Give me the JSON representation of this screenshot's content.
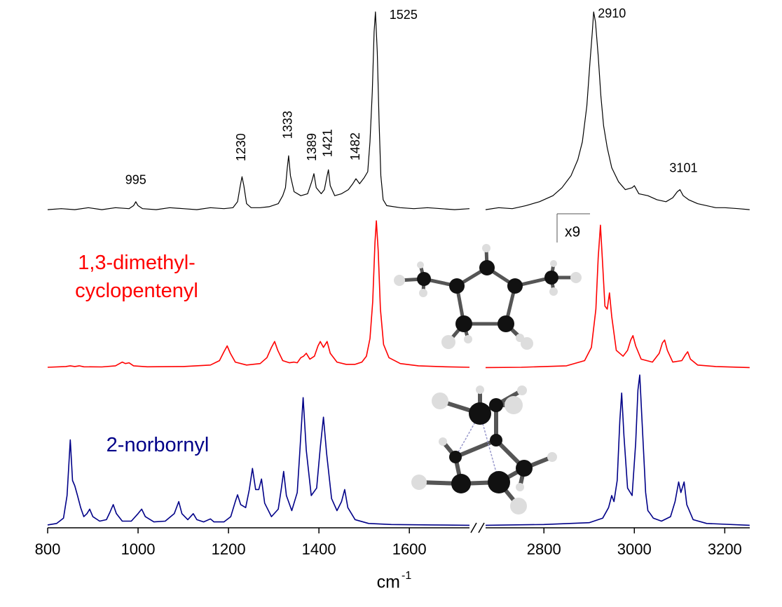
{
  "chart_data": {
    "type": "line",
    "xlabel": "cm",
    "xlabel_superscript": "-1",
    "xlim": [
      800,
      3255
    ],
    "xbreak": [
      1733,
      2671
    ],
    "xticks": [
      800,
      1000,
      1200,
      1400,
      1600,
      2800,
      3000,
      3200
    ],
    "ylim": [
      0,
      100
    ],
    "peak_labels": [
      995,
      1230,
      1333,
      1389,
      1421,
      1482,
      1525,
      2910,
      3101
    ],
    "magnification_label": "x9",
    "series": [
      {
        "color": "#000000",
        "x": [
          800,
          830,
          860,
          890,
          920,
          950,
          980,
          990,
          995,
          1000,
          1010,
          1040,
          1070,
          1100,
          1130,
          1160,
          1190,
          1210,
          1220,
          1226,
          1230,
          1234,
          1240,
          1250,
          1270,
          1290,
          1310,
          1320,
          1326,
          1330,
          1333,
          1337,
          1345,
          1360,
          1375,
          1384,
          1389,
          1394,
          1405,
          1412,
          1418,
          1421,
          1425,
          1435,
          1450,
          1465,
          1475,
          1482,
          1490,
          1500,
          1508,
          1513,
          1518,
          1522,
          1525,
          1529,
          1533,
          1537,
          1542,
          1550,
          1580,
          1610,
          1640,
          1670,
          1700,
          1733,
          null,
          2671,
          2700,
          2730,
          2760,
          2790,
          2820,
          2840,
          2860,
          2875,
          2885,
          2895,
          2902,
          2907,
          2910,
          2914,
          2920,
          2926,
          2932,
          2940,
          2950,
          2965,
          2980,
          2995,
          3000,
          3010,
          3030,
          3050,
          3070,
          3085,
          3095,
          3101,
          3108,
          3120,
          3140,
          3160,
          3180,
          3200,
          3230,
          3255
        ],
        "values": [
          1,
          1.5,
          1,
          2,
          1,
          2,
          1.5,
          3,
          5,
          3,
          1.5,
          1,
          2,
          1.5,
          1,
          2,
          1.5,
          2,
          5,
          13,
          17.5,
          13,
          4,
          2,
          2,
          2.5,
          4,
          8,
          12,
          22,
          28,
          18,
          10,
          8,
          9,
          15,
          19,
          12,
          9,
          11,
          18,
          21,
          13,
          8,
          9,
          11,
          14,
          16.5,
          14,
          17,
          20,
          35,
          60,
          90,
          100,
          80,
          45,
          18,
          6,
          3,
          2,
          1.5,
          2,
          1.5,
          1,
          1.5,
          null,
          1,
          2,
          1.5,
          3,
          5,
          8,
          12,
          18,
          26,
          35,
          53,
          75,
          90,
          100,
          95,
          78,
          58,
          43,
          32,
          22,
          15,
          11,
          12,
          13,
          9,
          8,
          6,
          5,
          7,
          10,
          11,
          8,
          6,
          4,
          3,
          2,
          2,
          1.5,
          1
        ]
      },
      {
        "name": "1,3-dimethyl-cyclopentenyl",
        "color": "#ff0000",
        "x": [
          800,
          840,
          850,
          860,
          870,
          880,
          920,
          950,
          965,
          972,
          980,
          990,
          1020,
          1100,
          1160,
          1180,
          1190,
          1197,
          1204,
          1215,
          1240,
          1270,
          1285,
          1295,
          1302,
          1309,
          1320,
          1335,
          1345,
          1352,
          1360,
          1366,
          1372,
          1380,
          1390,
          1398,
          1403,
          1410,
          1418,
          1425,
          1440,
          1460,
          1480,
          1495,
          1505,
          1513,
          1519,
          1524,
          1527,
          1531,
          1536,
          1543,
          1555,
          1580,
          1620,
          1680,
          1733,
          null,
          2671,
          2750,
          2850,
          2890,
          2905,
          2915,
          2920,
          2925,
          2930,
          2935,
          2940,
          2945,
          2950,
          2960,
          2975,
          2985,
          2992,
          2997,
          3003,
          3015,
          3040,
          3055,
          3062,
          3067,
          3073,
          3085,
          3105,
          3113,
          3118,
          3124,
          3140,
          3180,
          3255
        ],
        "values": [
          0.5,
          1,
          1.5,
          1,
          1.5,
          0.8,
          0.7,
          1.5,
          4,
          3,
          3.5,
          1.5,
          0.8,
          1,
          2,
          5,
          11,
          15,
          10,
          4,
          2,
          3,
          7,
          14,
          18,
          12,
          5,
          3.5,
          4,
          3.5,
          7,
          8,
          10,
          6,
          8,
          15,
          18,
          14,
          18,
          10,
          4,
          2.5,
          2.5,
          4,
          8,
          20,
          45,
          85,
          100,
          80,
          40,
          16,
          7,
          3,
          1.5,
          0.8,
          0.5,
          null,
          0.3,
          0.5,
          1.5,
          5,
          14,
          40,
          75,
          97,
          70,
          42,
          40,
          51,
          35,
          12,
          8,
          12,
          19,
          22,
          15,
          6,
          4,
          10,
          17,
          19,
          12,
          4,
          5,
          9,
          11,
          6,
          2,
          1,
          0.3
        ]
      },
      {
        "name": "2-norbornyl",
        "color": "#000088",
        "x": [
          800,
          820,
          835,
          843,
          850,
          855,
          860,
          866,
          873,
          880,
          887,
          893,
          900,
          915,
          930,
          938,
          945,
          952,
          965,
          985,
          1000,
          1008,
          1016,
          1035,
          1060,
          1080,
          1090,
          1097,
          1110,
          1122,
          1130,
          1145,
          1160,
          1168,
          1190,
          1205,
          1215,
          1220,
          1227,
          1238,
          1246,
          1253,
          1260,
          1267,
          1273,
          1280,
          1295,
          1310,
          1317,
          1322,
          1328,
          1340,
          1352,
          1358,
          1365,
          1372,
          1383,
          1395,
          1403,
          1410,
          1417,
          1428,
          1440,
          1450,
          1457,
          1464,
          1480,
          1510,
          1560,
          1650,
          1733,
          null,
          2671,
          2800,
          2900,
          2930,
          2943,
          2950,
          2955,
          2962,
          2968,
          2972,
          2977,
          2985,
          2995,
          3003,
          3008,
          3012,
          3017,
          3025,
          3030,
          3035,
          3042,
          3060,
          3080,
          3090,
          3098,
          3103,
          3110,
          3116,
          3130,
          3160,
          3255
        ],
        "values": [
          0.5,
          1.5,
          5,
          20,
          57,
          30,
          26.5,
          20,
          12,
          6,
          8,
          11,
          6,
          3,
          4,
          9,
          14,
          8,
          3,
          3,
          8,
          11,
          6,
          2.5,
          3,
          8,
          16,
          8,
          4,
          8,
          4,
          2.5,
          4.5,
          2.5,
          2.5,
          6,
          16,
          20.5,
          14,
          12,
          24,
          38,
          24,
          24,
          31,
          15,
          6,
          11,
          25,
          36,
          20,
          10,
          22,
          50,
          85,
          50,
          20,
          25,
          52,
          72,
          48,
          18,
          10,
          16,
          24,
          12,
          4,
          1.5,
          0.8,
          0.5,
          0.3,
          null,
          0.3,
          0.8,
          2,
          5,
          12,
          20,
          16,
          30,
          70,
          88,
          60,
          25,
          20,
          55,
          90,
          100,
          70,
          22,
          10,
          8,
          5,
          3,
          6,
          16,
          29,
          22,
          29,
          14,
          4,
          1.5,
          0.3
        ]
      }
    ]
  }
}
